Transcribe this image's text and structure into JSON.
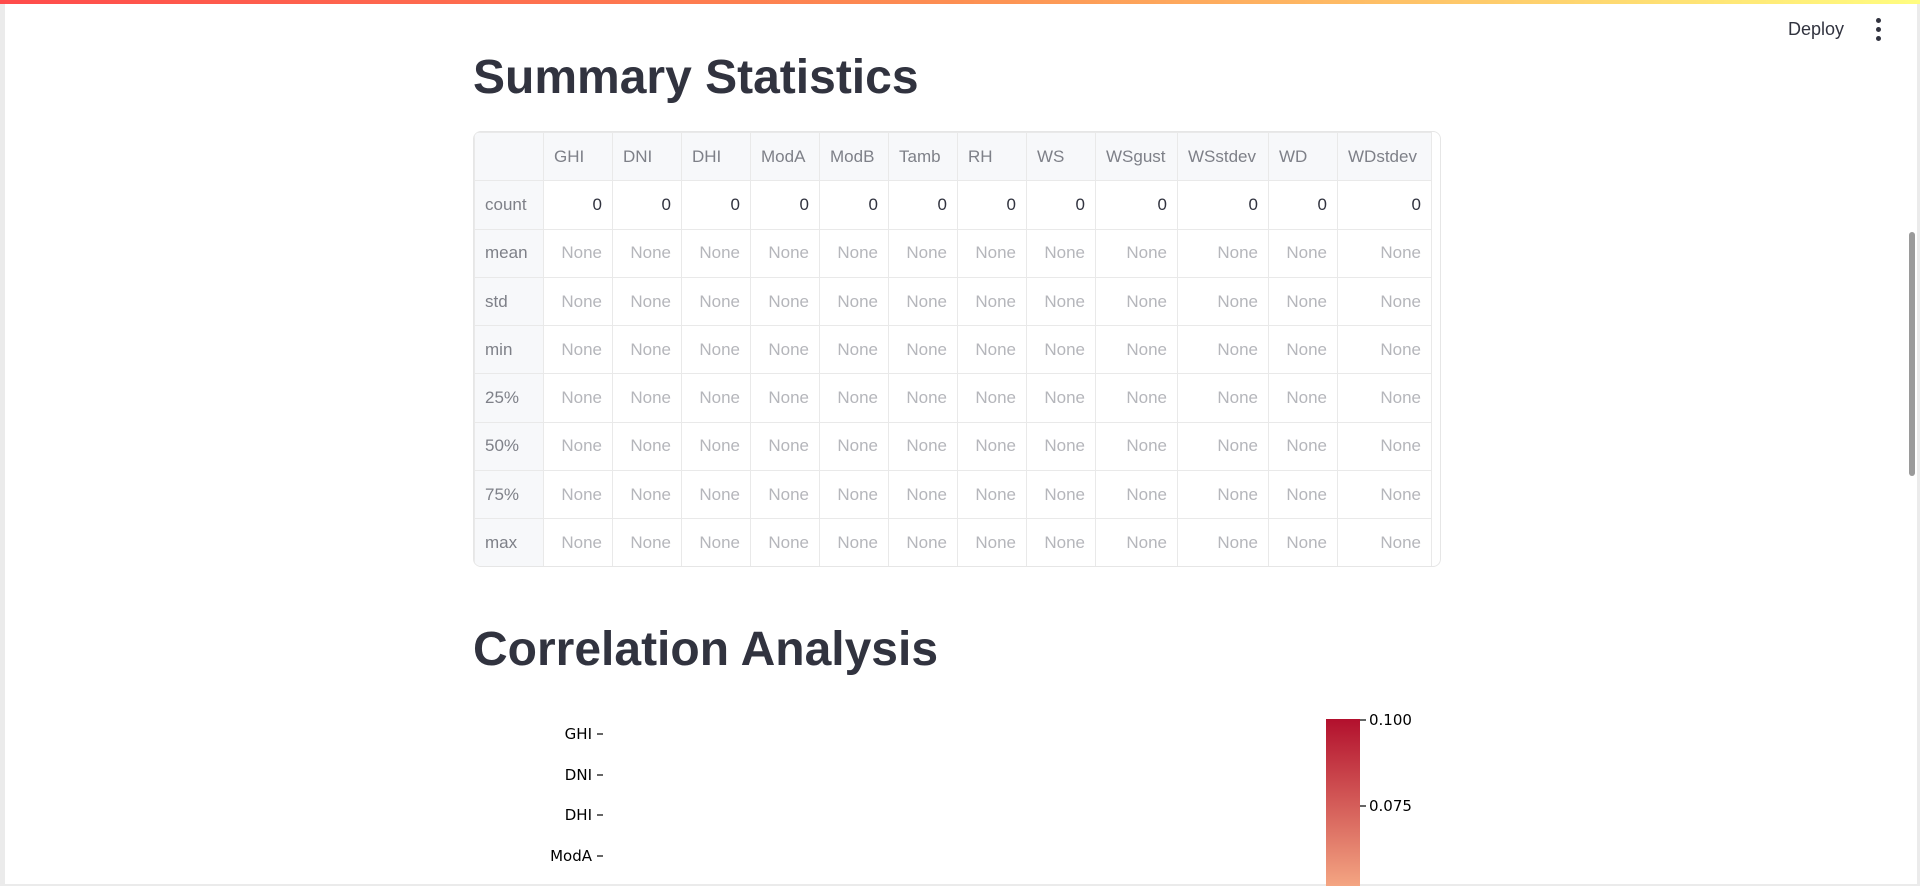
{
  "header": {
    "deploy_label": "Deploy",
    "menu_icon": "more-vertical-icon"
  },
  "summary": {
    "title": "Summary Statistics",
    "columns": [
      "GHI",
      "DNI",
      "DHI",
      "ModA",
      "ModB",
      "Tamb",
      "RH",
      "WS",
      "WSgust",
      "WSstdev",
      "WD",
      "WDstdev"
    ],
    "rows": [
      {
        "label": "count",
        "values": [
          "0",
          "0",
          "0",
          "0",
          "0",
          "0",
          "0",
          "0",
          "0",
          "0",
          "0",
          "0"
        ]
      },
      {
        "label": "mean",
        "values": [
          "None",
          "None",
          "None",
          "None",
          "None",
          "None",
          "None",
          "None",
          "None",
          "None",
          "None",
          "None"
        ]
      },
      {
        "label": "std",
        "values": [
          "None",
          "None",
          "None",
          "None",
          "None",
          "None",
          "None",
          "None",
          "None",
          "None",
          "None",
          "None"
        ]
      },
      {
        "label": "min",
        "values": [
          "None",
          "None",
          "None",
          "None",
          "None",
          "None",
          "None",
          "None",
          "None",
          "None",
          "None",
          "None"
        ]
      },
      {
        "label": "25%",
        "values": [
          "None",
          "None",
          "None",
          "None",
          "None",
          "None",
          "None",
          "None",
          "None",
          "None",
          "None",
          "None"
        ]
      },
      {
        "label": "50%",
        "values": [
          "None",
          "None",
          "None",
          "None",
          "None",
          "None",
          "None",
          "None",
          "None",
          "None",
          "None",
          "None"
        ]
      },
      {
        "label": "75%",
        "values": [
          "None",
          "None",
          "None",
          "None",
          "None",
          "None",
          "None",
          "None",
          "None",
          "None",
          "None",
          "None"
        ]
      },
      {
        "label": "max",
        "values": [
          "None",
          "None",
          "None",
          "None",
          "None",
          "None",
          "None",
          "None",
          "None",
          "None",
          "None",
          "None"
        ]
      }
    ]
  },
  "correlation": {
    "title": "Correlation Analysis"
  },
  "chart_data": {
    "type": "heatmap",
    "y_tick_labels": [
      "GHI",
      "DNI",
      "DHI",
      "ModA"
    ],
    "colorbar_ticks": [
      "0.100",
      "0.075"
    ],
    "colorbar_range": [
      0.075,
      0.1
    ],
    "colormap_colors": [
      "#b2102d",
      "#f4a582"
    ]
  }
}
